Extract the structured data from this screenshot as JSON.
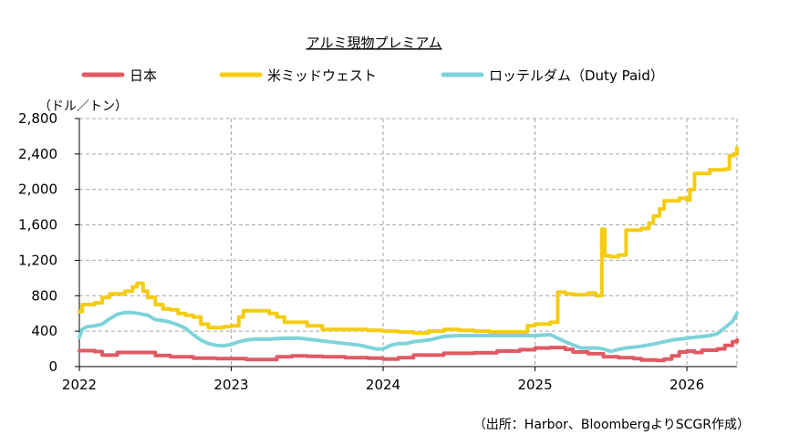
{
  "chart_data": {
    "type": "line",
    "title": "アルミ現物プレミアム",
    "ylabel": "（ドル／トン）",
    "xlabel": "",
    "ylim": [
      0,
      2800
    ],
    "yticks": [
      0,
      400,
      800,
      1200,
      1600,
      2000,
      2400,
      2800
    ],
    "ytick_labels": [
      "0",
      "400",
      "800",
      "1,200",
      "1,600",
      "2,000",
      "2,400",
      "2,800"
    ],
    "xlim": [
      2022,
      2026.33
    ],
    "xticks": [
      2022,
      2023,
      2024,
      2025,
      2026
    ],
    "xtick_labels": [
      "2022",
      "2023",
      "2024",
      "2025",
      "2026"
    ],
    "grid": true,
    "legend_position": "top",
    "source": "（出所：Harbor、BloombergよりSCGR作成）",
    "series": [
      {
        "name": "日本",
        "color": "#e05a63",
        "step": true,
        "points": [
          [
            2022.0,
            180
          ],
          [
            2022.1,
            170
          ],
          [
            2022.15,
            130
          ],
          [
            2022.25,
            160
          ],
          [
            2022.4,
            160
          ],
          [
            2022.5,
            125
          ],
          [
            2022.6,
            110
          ],
          [
            2022.75,
            95
          ],
          [
            2022.9,
            90
          ],
          [
            2023.0,
            90
          ],
          [
            2023.1,
            80
          ],
          [
            2023.25,
            80
          ],
          [
            2023.3,
            110
          ],
          [
            2023.4,
            120
          ],
          [
            2023.5,
            115
          ],
          [
            2023.6,
            110
          ],
          [
            2023.75,
            100
          ],
          [
            2023.9,
            95
          ],
          [
            2024.0,
            85
          ],
          [
            2024.1,
            100
          ],
          [
            2024.2,
            130
          ],
          [
            2024.4,
            150
          ],
          [
            2024.6,
            155
          ],
          [
            2024.75,
            175
          ],
          [
            2024.9,
            190
          ],
          [
            2025.0,
            210
          ],
          [
            2025.1,
            215
          ],
          [
            2025.2,
            195
          ],
          [
            2025.25,
            165
          ],
          [
            2025.35,
            145
          ],
          [
            2025.45,
            110
          ],
          [
            2025.55,
            100
          ],
          [
            2025.65,
            90
          ],
          [
            2025.7,
            75
          ],
          [
            2025.8,
            70
          ],
          [
            2025.85,
            85
          ],
          [
            2025.9,
            120
          ],
          [
            2025.95,
            165
          ],
          [
            2026.0,
            175
          ],
          [
            2026.05,
            160
          ],
          [
            2026.1,
            185
          ],
          [
            2026.2,
            200
          ],
          [
            2026.25,
            240
          ],
          [
            2026.3,
            280
          ],
          [
            2026.33,
            300
          ]
        ]
      },
      {
        "name": "米ミッドウェスト",
        "color": "#f4cc14",
        "step": true,
        "points": [
          [
            2022.0,
            620
          ],
          [
            2022.02,
            700
          ],
          [
            2022.1,
            720
          ],
          [
            2022.15,
            780
          ],
          [
            2022.2,
            820
          ],
          [
            2022.3,
            850
          ],
          [
            2022.35,
            900
          ],
          [
            2022.38,
            940
          ],
          [
            2022.42,
            850
          ],
          [
            2022.45,
            780
          ],
          [
            2022.5,
            700
          ],
          [
            2022.55,
            650
          ],
          [
            2022.6,
            640
          ],
          [
            2022.65,
            600
          ],
          [
            2022.7,
            580
          ],
          [
            2022.75,
            560
          ],
          [
            2022.8,
            480
          ],
          [
            2022.85,
            440
          ],
          [
            2022.95,
            450
          ],
          [
            2023.0,
            460
          ],
          [
            2023.05,
            560
          ],
          [
            2023.08,
            630
          ],
          [
            2023.25,
            600
          ],
          [
            2023.3,
            560
          ],
          [
            2023.35,
            500
          ],
          [
            2023.5,
            460
          ],
          [
            2023.6,
            420
          ],
          [
            2023.8,
            420
          ],
          [
            2023.9,
            410
          ],
          [
            2024.0,
            400
          ],
          [
            2024.1,
            390
          ],
          [
            2024.2,
            380
          ],
          [
            2024.3,
            400
          ],
          [
            2024.4,
            420
          ],
          [
            2024.5,
            410
          ],
          [
            2024.6,
            400
          ],
          [
            2024.7,
            390
          ],
          [
            2024.9,
            390
          ],
          [
            2024.95,
            460
          ],
          [
            2025.0,
            480
          ],
          [
            2025.1,
            500
          ],
          [
            2025.15,
            840
          ],
          [
            2025.2,
            820
          ],
          [
            2025.25,
            810
          ],
          [
            2025.35,
            830
          ],
          [
            2025.4,
            800
          ],
          [
            2025.44,
            1550
          ],
          [
            2025.46,
            1250
          ],
          [
            2025.5,
            1240
          ],
          [
            2025.55,
            1260
          ],
          [
            2025.6,
            1540
          ],
          [
            2025.7,
            1560
          ],
          [
            2025.75,
            1620
          ],
          [
            2025.78,
            1700
          ],
          [
            2025.82,
            1780
          ],
          [
            2025.85,
            1870
          ],
          [
            2025.9,
            1870
          ],
          [
            2025.95,
            1900
          ],
          [
            2026.0,
            1880
          ],
          [
            2026.02,
            2000
          ],
          [
            2026.05,
            2180
          ],
          [
            2026.1,
            2180
          ],
          [
            2026.15,
            2220
          ],
          [
            2026.25,
            2230
          ],
          [
            2026.28,
            2380
          ],
          [
            2026.31,
            2400
          ],
          [
            2026.33,
            2470
          ]
        ]
      },
      {
        "name": "ロッテルダム（Duty Paid）",
        "color": "#7ed3da",
        "step": false,
        "points": [
          [
            2022.0,
            330
          ],
          [
            2022.02,
            420
          ],
          [
            2022.05,
            450
          ],
          [
            2022.1,
            460
          ],
          [
            2022.15,
            480
          ],
          [
            2022.2,
            540
          ],
          [
            2022.25,
            590
          ],
          [
            2022.3,
            610
          ],
          [
            2022.35,
            610
          ],
          [
            2022.45,
            580
          ],
          [
            2022.5,
            530
          ],
          [
            2022.55,
            520
          ],
          [
            2022.6,
            500
          ],
          [
            2022.65,
            470
          ],
          [
            2022.7,
            430
          ],
          [
            2022.75,
            360
          ],
          [
            2022.8,
            300
          ],
          [
            2022.85,
            260
          ],
          [
            2022.9,
            240
          ],
          [
            2022.95,
            235
          ],
          [
            2023.0,
            250
          ],
          [
            2023.05,
            280
          ],
          [
            2023.1,
            300
          ],
          [
            2023.15,
            310
          ],
          [
            2023.25,
            310
          ],
          [
            2023.35,
            320
          ],
          [
            2023.45,
            320
          ],
          [
            2023.55,
            300
          ],
          [
            2023.65,
            280
          ],
          [
            2023.75,
            260
          ],
          [
            2023.85,
            240
          ],
          [
            2023.95,
            200
          ],
          [
            2024.0,
            200
          ],
          [
            2024.05,
            240
          ],
          [
            2024.1,
            260
          ],
          [
            2024.15,
            260
          ],
          [
            2024.2,
            280
          ],
          [
            2024.3,
            300
          ],
          [
            2024.4,
            340
          ],
          [
            2024.5,
            350
          ],
          [
            2024.6,
            350
          ],
          [
            2024.7,
            350
          ],
          [
            2024.8,
            350
          ],
          [
            2024.9,
            350
          ],
          [
            2025.0,
            350
          ],
          [
            2025.1,
            360
          ],
          [
            2025.2,
            280
          ],
          [
            2025.3,
            210
          ],
          [
            2025.4,
            210
          ],
          [
            2025.45,
            200
          ],
          [
            2025.5,
            170
          ],
          [
            2025.55,
            195
          ],
          [
            2025.6,
            210
          ],
          [
            2025.7,
            230
          ],
          [
            2025.8,
            260
          ],
          [
            2025.9,
            300
          ],
          [
            2026.0,
            320
          ],
          [
            2026.05,
            330
          ],
          [
            2026.1,
            340
          ],
          [
            2026.15,
            350
          ],
          [
            2026.2,
            370
          ],
          [
            2026.25,
            440
          ],
          [
            2026.3,
            510
          ],
          [
            2026.33,
            600
          ]
        ]
      }
    ]
  }
}
